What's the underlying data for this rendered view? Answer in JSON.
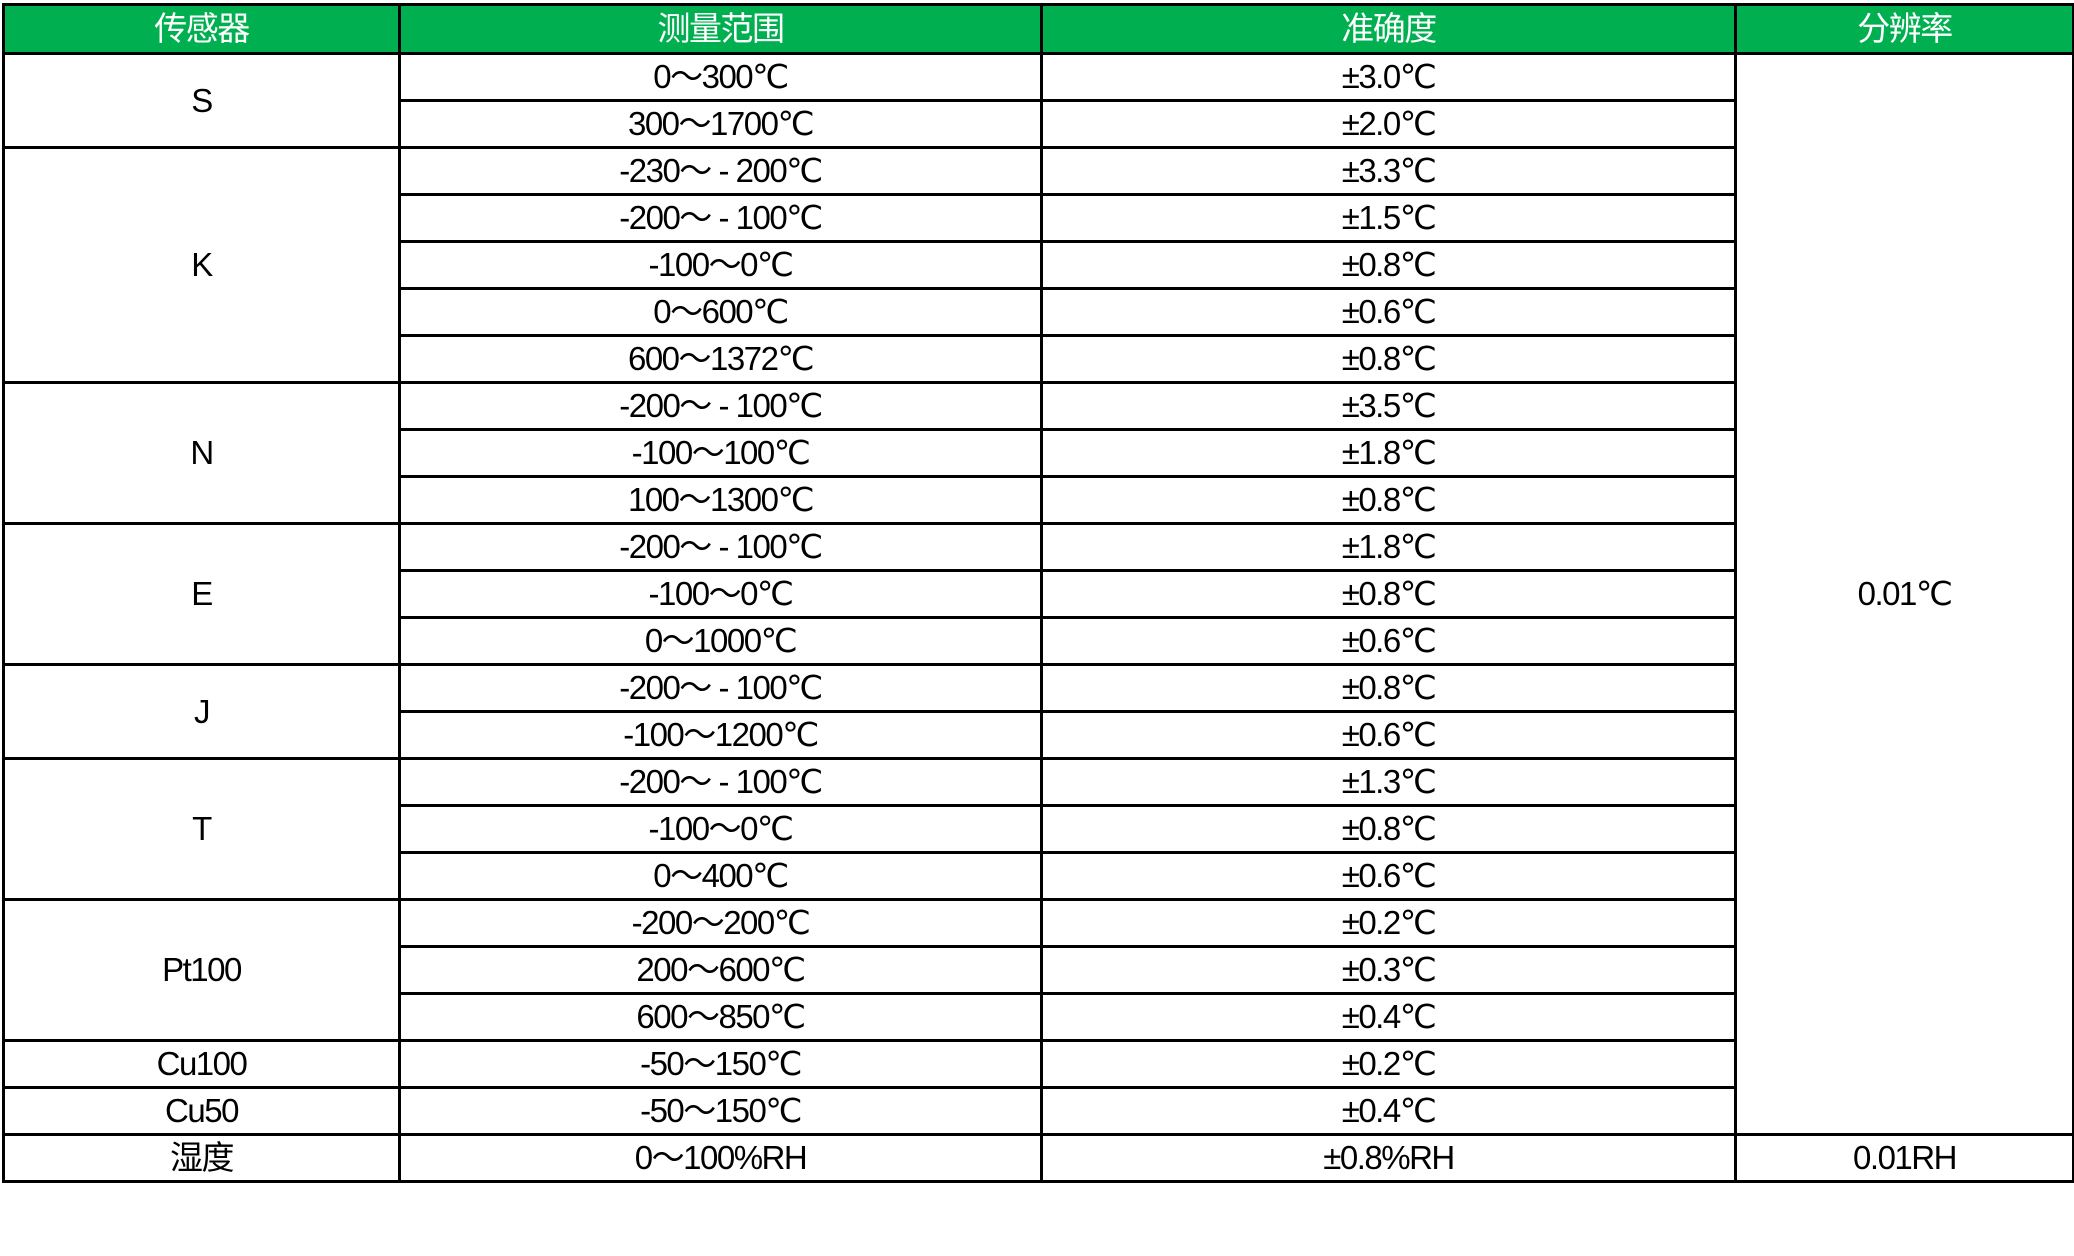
{
  "header": {
    "color": "#00b050",
    "columns": [
      "传感器",
      "测量范围",
      "准确度",
      "分辨率"
    ]
  },
  "sensors": [
    {
      "name": "S",
      "rows": [
        [
          "0～300℃",
          "±3.0℃"
        ],
        [
          "300～1700℃",
          "±2.0℃"
        ]
      ]
    },
    {
      "name": "K",
      "rows": [
        [
          "-230～ - 200℃",
          "±3.3℃"
        ],
        [
          "-200～ - 100℃",
          "±1.5℃"
        ],
        [
          "-100～0℃",
          "±0.8℃"
        ],
        [
          "0～600℃",
          "±0.6℃"
        ],
        [
          "600～1372℃",
          "±0.8℃"
        ]
      ]
    },
    {
      "name": "N",
      "rows": [
        [
          "-200～ - 100℃",
          "±3.5℃"
        ],
        [
          "-100～100℃",
          "±1.8℃"
        ],
        [
          "100～1300℃",
          "±0.8℃"
        ]
      ]
    },
    {
      "name": "E",
      "rows": [
        [
          "-200～ - 100℃",
          "±1.8℃"
        ],
        [
          "-100～0℃",
          "±0.8℃"
        ],
        [
          "0～1000℃",
          "±0.6℃"
        ]
      ]
    },
    {
      "name": "J",
      "rows": [
        [
          "-200～ - 100℃",
          "±0.8℃"
        ],
        [
          "-100～1200℃",
          "±0.6℃"
        ]
      ]
    },
    {
      "name": "T",
      "rows": [
        [
          "-200～ - 100℃",
          "±1.3℃"
        ],
        [
          "-100～0℃",
          "±0.8℃"
        ],
        [
          "0～400℃",
          "±0.6℃"
        ]
      ]
    },
    {
      "name": "Pt100",
      "rows": [
        [
          "-200～200℃",
          "±0.2℃"
        ],
        [
          "200～600℃",
          "±0.3℃"
        ],
        [
          "600～850℃",
          "±0.4℃"
        ]
      ]
    },
    {
      "name": "Cu100",
      "rows": [
        [
          "-50～150℃",
          "±0.2℃"
        ]
      ]
    },
    {
      "name": "Cu50",
      "rows": [
        [
          "-50～150℃",
          "±0.4℃"
        ]
      ]
    },
    {
      "name": "湿度",
      "rows": [
        [
          "0～100%RH",
          "±0.8%RH"
        ]
      ]
    }
  ],
  "resolution": {
    "temperature": "0.01℃",
    "humidity": "0.01RH"
  }
}
